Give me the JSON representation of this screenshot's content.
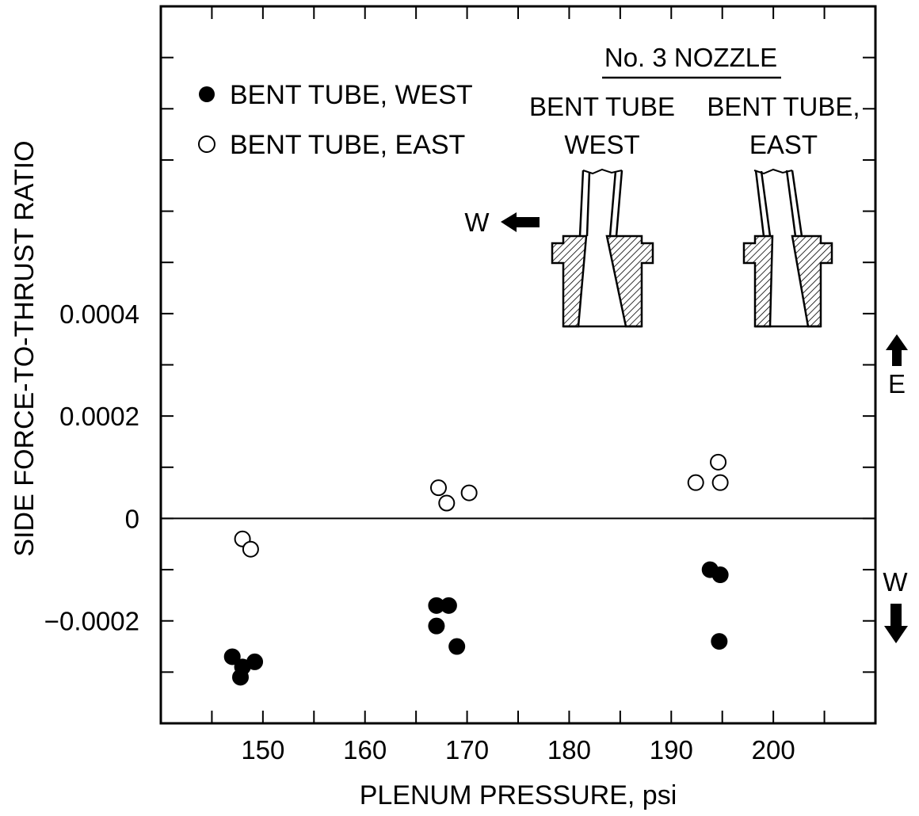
{
  "chart_data": {
    "type": "scatter",
    "xlabel": "PLENUM PRESSURE, psi",
    "ylabel": "SIDE FORCE-TO-THRUST RATIO",
    "xlim": [
      140,
      210
    ],
    "ylim": [
      -0.0004,
      0.001
    ],
    "x_ticks": [
      150,
      160,
      170,
      180,
      190,
      200
    ],
    "y_ticks": [
      {
        "value": 0.0004,
        "label": "0.0004"
      },
      {
        "value": 0.0002,
        "label": "0.0002"
      },
      {
        "value": 0,
        "label": "0"
      },
      {
        "value": -0.0002,
        "label": "−0.0002"
      }
    ],
    "grid": false,
    "zero_line": true,
    "legend_placement": "top-left",
    "series": [
      {
        "name": "BENT TUBE, WEST",
        "marker": "filled-circle",
        "points": [
          {
            "x": 147.0,
            "y": -0.00027
          },
          {
            "x": 148.0,
            "y": -0.00029
          },
          {
            "x": 147.8,
            "y": -0.00031
          },
          {
            "x": 149.2,
            "y": -0.00028
          },
          {
            "x": 167.0,
            "y": -0.00017
          },
          {
            "x": 168.2,
            "y": -0.00017
          },
          {
            "x": 167.0,
            "y": -0.00021
          },
          {
            "x": 169.0,
            "y": -0.00025
          },
          {
            "x": 193.8,
            "y": -0.0001
          },
          {
            "x": 194.8,
            "y": -0.00011
          },
          {
            "x": 194.7,
            "y": -0.00024
          }
        ]
      },
      {
        "name": "BENT TUBE, EAST",
        "marker": "open-circle",
        "points": [
          {
            "x": 148.0,
            "y": -4e-05
          },
          {
            "x": 148.8,
            "y": -6e-05
          },
          {
            "x": 167.2,
            "y": 6e-05
          },
          {
            "x": 168.0,
            "y": 3e-05
          },
          {
            "x": 170.2,
            "y": 5e-05
          },
          {
            "x": 192.4,
            "y": 7e-05
          },
          {
            "x": 194.6,
            "y": 0.00011
          },
          {
            "x": 194.8,
            "y": 7e-05
          }
        ]
      }
    ],
    "inset": {
      "title": "No. 3 NOZZLE",
      "west_label_line1": "BENT TUBE",
      "west_label_line2": "WEST",
      "east_label_line1": "BENT TUBE,",
      "east_label_line2": "EAST",
      "arrow_label": "W"
    },
    "side_labels": {
      "up": "E",
      "down": "W"
    }
  }
}
